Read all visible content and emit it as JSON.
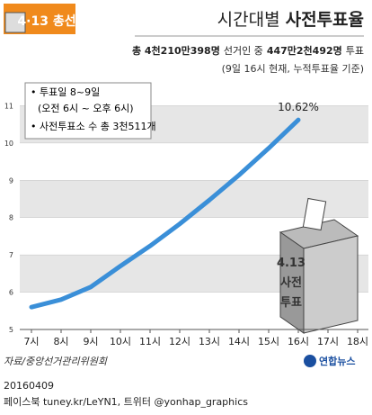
{
  "chart_data": {
    "type": "line",
    "badge": "4·13 총선",
    "title": {
      "normal": "시간대별",
      "bold": "사전투표율"
    },
    "subtitle": [
      "총 4천210만398명",
      "선거인 중",
      "447만2천492명",
      "투표"
    ],
    "note": "(9일 16시 현재, 누적투표율 기준)",
    "categories": [
      "7시",
      "8시",
      "9시",
      "10시",
      "11시",
      "12시",
      "13시",
      "14시",
      "15시",
      "16시",
      "17시",
      "18시"
    ],
    "series": [
      {
        "name": "사전투표율",
        "color": "#3a8fd8",
        "values": [
          5.6,
          5.8,
          6.14,
          6.7,
          7.24,
          7.83,
          8.47,
          9.14,
          9.86,
          10.62,
          null,
          null
        ],
        "value_labels": [
          null,
          null,
          null,
          null,
          null,
          null,
          null,
          null,
          null,
          "10.62%",
          null,
          null
        ]
      }
    ],
    "ylim": [
      5,
      11.3
    ],
    "yticks": [
      5,
      6,
      7,
      8,
      9,
      10,
      11
    ],
    "grid": true,
    "info": [
      "투표일 8~9일",
      "(오전 6시 ~ 오후 6시)",
      "사전투표소 수 총 3천511개"
    ],
    "illustration": [
      "4.13",
      "사전",
      "투표"
    ],
    "source": "자료/중앙선거관리위원회",
    "logo": "연합뉴스",
    "date": "20160409",
    "footer": "페이스북 tuney.kr/LeYN1, 트위터 @yonhap_graphics"
  }
}
